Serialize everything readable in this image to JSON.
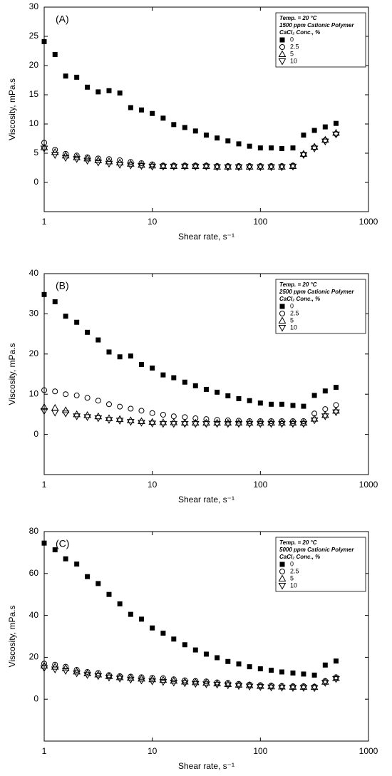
{
  "chart_data": [
    {
      "type": "scatter",
      "label": "(A)",
      "xlabel": "Shear rate, s⁻¹",
      "ylabel": "Viscosity, mPa.s",
      "legend_title": [
        "Temp. = 20 °C",
        "1500 ppm Cationic Polymer",
        "CaCl₂ Conc., %"
      ],
      "legend": "upper right",
      "xscale": "log",
      "xlim": [
        1,
        1000
      ],
      "xticks": [
        1,
        10,
        100,
        1000
      ],
      "ylim": [
        -5,
        30
      ],
      "yticks": [
        0,
        5,
        10,
        15,
        20,
        25,
        30
      ],
      "x": [
        1,
        1.26,
        1.58,
        2,
        2.51,
        3.16,
        3.98,
        5.01,
        6.31,
        7.94,
        10,
        12.6,
        15.8,
        20,
        25.1,
        31.6,
        39.8,
        50.1,
        63.1,
        79.4,
        100,
        126,
        158,
        200,
        251,
        316,
        398,
        501
      ],
      "series": [
        {
          "name": "0",
          "color": "#000000",
          "marker": "square-filled",
          "values": [
            24.1,
            21.9,
            18.2,
            18.0,
            16.3,
            15.5,
            15.7,
            15.3,
            12.8,
            12.4,
            11.8,
            11.0,
            9.9,
            9.4,
            8.8,
            8.1,
            7.6,
            7.1,
            6.6,
            6.2,
            5.9,
            5.9,
            5.8,
            5.9,
            8.1,
            8.9,
            9.5,
            10.1
          ]
        },
        {
          "name": "2.5",
          "color": "#000000",
          "marker": "circle",
          "values": [
            6.8,
            5.6,
            4.9,
            4.6,
            4.3,
            4.1,
            4.0,
            3.8,
            3.5,
            3.3,
            3.1,
            2.9,
            2.9,
            2.9,
            2.9,
            2.9,
            2.8,
            2.8,
            2.8,
            2.8,
            2.8,
            2.8,
            2.8,
            2.9,
            4.8,
            6.0,
            7.2,
            8.3
          ]
        },
        {
          "name": "5",
          "color": "#000000",
          "marker": "triangle-up",
          "values": [
            6.0,
            5.2,
            4.6,
            4.3,
            4.1,
            3.8,
            3.6,
            3.4,
            3.2,
            3.0,
            2.9,
            2.8,
            2.8,
            2.8,
            2.8,
            2.8,
            2.7,
            2.7,
            2.7,
            2.7,
            2.7,
            2.7,
            2.7,
            2.8,
            4.9,
            6.1,
            7.3,
            8.5
          ]
        },
        {
          "name": "10",
          "color": "#000000",
          "marker": "triangle-down",
          "values": [
            5.8,
            4.7,
            4.2,
            4.0,
            3.7,
            3.4,
            3.2,
            3.0,
            2.9,
            2.8,
            2.7,
            2.7,
            2.7,
            2.7,
            2.7,
            2.7,
            2.6,
            2.6,
            2.6,
            2.6,
            2.6,
            2.6,
            2.6,
            2.7,
            4.7,
            5.8,
            7.0,
            8.2
          ]
        }
      ]
    },
    {
      "type": "scatter",
      "label": "(B)",
      "xlabel": "Shear rate, s⁻¹",
      "ylabel": "Viscosity, mPa.s",
      "legend_title": [
        "Temp. = 20 °C",
        "2500 ppm Cationic Polymer",
        "CaCl₂ Conc., %"
      ],
      "legend": "upper right",
      "xscale": "log",
      "xlim": [
        1,
        1000
      ],
      "xticks": [
        1,
        10,
        100,
        1000
      ],
      "ylim": [
        -10,
        40
      ],
      "yticks": [
        0,
        10,
        20,
        30,
        40
      ],
      "x": [
        1,
        1.26,
        1.58,
        2,
        2.51,
        3.16,
        3.98,
        5.01,
        6.31,
        7.94,
        10,
        12.6,
        15.8,
        20,
        25.1,
        31.6,
        39.8,
        50.1,
        63.1,
        79.4,
        100,
        126,
        158,
        200,
        251,
        316,
        398,
        501
      ],
      "series": [
        {
          "name": "0",
          "color": "#000000",
          "marker": "square-filled",
          "values": [
            34.8,
            33.0,
            29.4,
            27.9,
            25.4,
            23.5,
            20.5,
            19.3,
            19.5,
            17.4,
            16.5,
            14.8,
            14.1,
            13.0,
            12.1,
            11.2,
            10.5,
            9.6,
            8.9,
            8.4,
            7.8,
            7.5,
            7.5,
            7.2,
            7.0,
            9.7,
            10.8,
            11.7
          ]
        },
        {
          "name": "2.5",
          "color": "#000000",
          "marker": "circle",
          "values": [
            11.0,
            10.7,
            10.0,
            9.7,
            9.1,
            8.4,
            7.5,
            6.9,
            6.4,
            5.9,
            5.3,
            4.9,
            4.5,
            4.3,
            4.0,
            3.8,
            3.6,
            3.5,
            3.4,
            3.3,
            3.3,
            3.3,
            3.3,
            3.3,
            3.3,
            5.2,
            6.3,
            7.3
          ]
        },
        {
          "name": "5",
          "color": "#000000",
          "marker": "triangle-up",
          "values": [
            6.8,
            6.6,
            6.0,
            5.0,
            4.8,
            4.5,
            4.0,
            3.8,
            3.5,
            3.3,
            3.1,
            3.0,
            3.0,
            2.9,
            2.9,
            2.9,
            2.9,
            2.9,
            2.9,
            2.9,
            2.9,
            2.9,
            2.9,
            2.9,
            2.9,
            3.9,
            4.8,
            5.9
          ]
        },
        {
          "name": "10",
          "color": "#000000",
          "marker": "triangle-down",
          "values": [
            5.8,
            5.4,
            5.2,
            4.5,
            4.3,
            4.0,
            3.6,
            3.4,
            3.1,
            2.9,
            2.7,
            2.6,
            2.6,
            2.6,
            2.6,
            2.6,
            2.6,
            2.6,
            2.6,
            2.6,
            2.6,
            2.6,
            2.6,
            2.6,
            2.6,
            3.5,
            4.5,
            5.5
          ]
        }
      ]
    },
    {
      "type": "scatter",
      "label": "(C)",
      "xlabel": "Shear rate, s⁻¹",
      "ylabel": "Viscosity, mPa.s",
      "legend_title": [
        "Temp. = 20 °C",
        "5000 ppm Cationic Polymer",
        "CaCl₂ Conc., %"
      ],
      "legend": "upper right",
      "xscale": "log",
      "xlim": [
        1,
        1000
      ],
      "xticks": [
        1,
        10,
        100,
        1000
      ],
      "ylim": [
        -20,
        80
      ],
      "yticks": [
        0,
        20,
        40,
        60,
        80
      ],
      "x": [
        1,
        1.26,
        1.58,
        2,
        2.51,
        3.16,
        3.98,
        5.01,
        6.31,
        7.94,
        10,
        12.6,
        15.8,
        20,
        25.1,
        31.6,
        39.8,
        50.1,
        63.1,
        79.4,
        100,
        126,
        158,
        200,
        251,
        316,
        398,
        501
      ],
      "series": [
        {
          "name": "0",
          "color": "#000000",
          "marker": "square-filled",
          "values": [
            74.5,
            71.3,
            67.0,
            64.5,
            58.5,
            55.2,
            50.0,
            45.5,
            40.5,
            38.2,
            34.0,
            31.5,
            28.7,
            26.0,
            23.5,
            21.5,
            19.8,
            18.0,
            16.8,
            15.5,
            14.5,
            13.8,
            13.0,
            12.5,
            12.0,
            11.5,
            16.3,
            18.2
          ]
        },
        {
          "name": "2.5",
          "color": "#000000",
          "marker": "circle",
          "values": [
            17.0,
            16.5,
            15.5,
            14.0,
            13.0,
            12.5,
            11.5,
            11.0,
            10.8,
            10.5,
            10.2,
            10.0,
            9.5,
            9.0,
            8.7,
            8.5,
            8.0,
            7.8,
            7.3,
            7.0,
            6.7,
            6.5,
            6.3,
            6.2,
            6.2,
            6.0,
            8.7,
            10.5
          ]
        },
        {
          "name": "5",
          "color": "#000000",
          "marker": "triangle-up",
          "values": [
            16.0,
            15.5,
            14.8,
            13.2,
            12.3,
            11.8,
            11.0,
            10.5,
            10.2,
            9.8,
            9.5,
            9.2,
            8.8,
            8.4,
            8.1,
            7.8,
            7.5,
            7.2,
            6.9,
            6.6,
            6.3,
            6.1,
            6.0,
            5.9,
            5.9,
            5.8,
            8.3,
            10.0
          ]
        },
        {
          "name": "10",
          "color": "#000000",
          "marker": "triangle-down",
          "values": [
            14.8,
            14.2,
            13.5,
            12.3,
            11.5,
            11.0,
            10.3,
            9.8,
            9.3,
            8.9,
            8.5,
            8.2,
            7.9,
            7.6,
            7.3,
            7.1,
            6.9,
            6.6,
            6.3,
            6.0,
            5.8,
            5.6,
            5.5,
            5.4,
            5.4,
            5.3,
            7.8,
            9.6
          ]
        }
      ]
    }
  ]
}
